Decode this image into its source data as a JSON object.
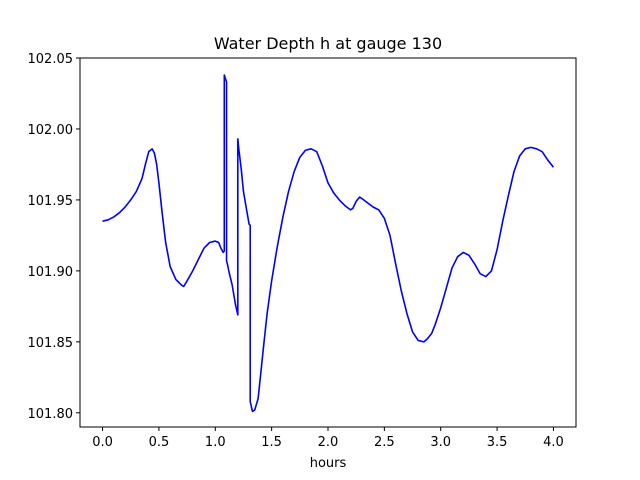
{
  "chart_data": {
    "type": "line",
    "title": "Water Depth h at gauge 130",
    "xlabel": "hours",
    "ylabel": "",
    "xlim": [
      -0.2,
      4.2
    ],
    "ylim": [
      101.79,
      102.05
    ],
    "xticks": [
      0.0,
      0.5,
      1.0,
      1.5,
      2.0,
      2.5,
      3.0,
      3.5,
      4.0
    ],
    "xtick_labels": [
      "0.0",
      "0.5",
      "1.0",
      "1.5",
      "2.0",
      "2.5",
      "3.0",
      "3.5",
      "4.0"
    ],
    "yticks": [
      101.8,
      101.85,
      101.9,
      101.95,
      102.0,
      102.05
    ],
    "ytick_labels": [
      "101.80",
      "101.85",
      "101.90",
      "101.95",
      "102.00",
      "102.05"
    ],
    "grid": false,
    "series": [
      {
        "color": "#0000ff",
        "x": [
          0.0,
          0.05,
          0.1,
          0.15,
          0.2,
          0.25,
          0.3,
          0.35,
          0.38,
          0.41,
          0.44,
          0.46,
          0.48,
          0.5,
          0.53,
          0.56,
          0.6,
          0.65,
          0.7,
          0.72,
          0.75,
          0.8,
          0.85,
          0.9,
          0.95,
          1.0,
          1.03,
          1.05,
          1.07,
          1.08,
          1.08,
          1.1,
          1.1,
          1.11,
          1.12,
          1.15,
          1.18,
          1.2,
          1.2,
          1.21,
          1.23,
          1.25,
          1.28,
          1.3,
          1.31,
          1.31,
          1.33,
          1.35,
          1.38,
          1.4,
          1.43,
          1.46,
          1.5,
          1.55,
          1.6,
          1.65,
          1.7,
          1.75,
          1.8,
          1.85,
          1.9,
          1.95,
          2.0,
          2.05,
          2.1,
          2.15,
          2.2,
          2.22,
          2.25,
          2.28,
          2.3,
          2.35,
          2.4,
          2.45,
          2.5,
          2.55,
          2.6,
          2.65,
          2.7,
          2.75,
          2.8,
          2.85,
          2.88,
          2.92,
          2.95,
          3.0,
          3.05,
          3.1,
          3.15,
          3.2,
          3.25,
          3.3,
          3.35,
          3.4,
          3.45,
          3.5,
          3.55,
          3.6,
          3.65,
          3.7,
          3.75,
          3.8,
          3.85,
          3.9,
          3.95,
          4.0
        ],
        "y": [
          101.935,
          101.936,
          101.938,
          101.941,
          101.945,
          101.95,
          101.956,
          101.965,
          101.975,
          101.984,
          101.986,
          101.983,
          101.975,
          101.962,
          101.94,
          101.92,
          101.903,
          101.894,
          101.89,
          101.889,
          101.893,
          101.9,
          101.908,
          101.916,
          101.92,
          101.921,
          101.92,
          101.916,
          101.913,
          101.914,
          102.038,
          102.033,
          101.907,
          101.904,
          101.9,
          101.89,
          101.876,
          101.869,
          101.993,
          101.985,
          101.972,
          101.956,
          101.942,
          101.933,
          101.932,
          101.808,
          101.801,
          101.802,
          101.81,
          101.825,
          101.848,
          101.87,
          101.893,
          101.917,
          101.938,
          101.956,
          101.97,
          101.98,
          101.985,
          101.986,
          101.984,
          101.974,
          101.962,
          101.955,
          101.95,
          101.946,
          101.943,
          101.944,
          101.949,
          101.952,
          101.951,
          101.948,
          101.945,
          101.943,
          101.937,
          101.925,
          101.905,
          101.886,
          101.87,
          101.857,
          101.851,
          101.85,
          101.852,
          101.856,
          101.862,
          101.874,
          101.888,
          101.902,
          101.91,
          101.913,
          101.911,
          101.905,
          101.898,
          101.896,
          101.9,
          101.915,
          101.935,
          101.953,
          101.97,
          101.981,
          101.986,
          101.987,
          101.986,
          101.984,
          101.978,
          101.973
        ]
      }
    ]
  }
}
